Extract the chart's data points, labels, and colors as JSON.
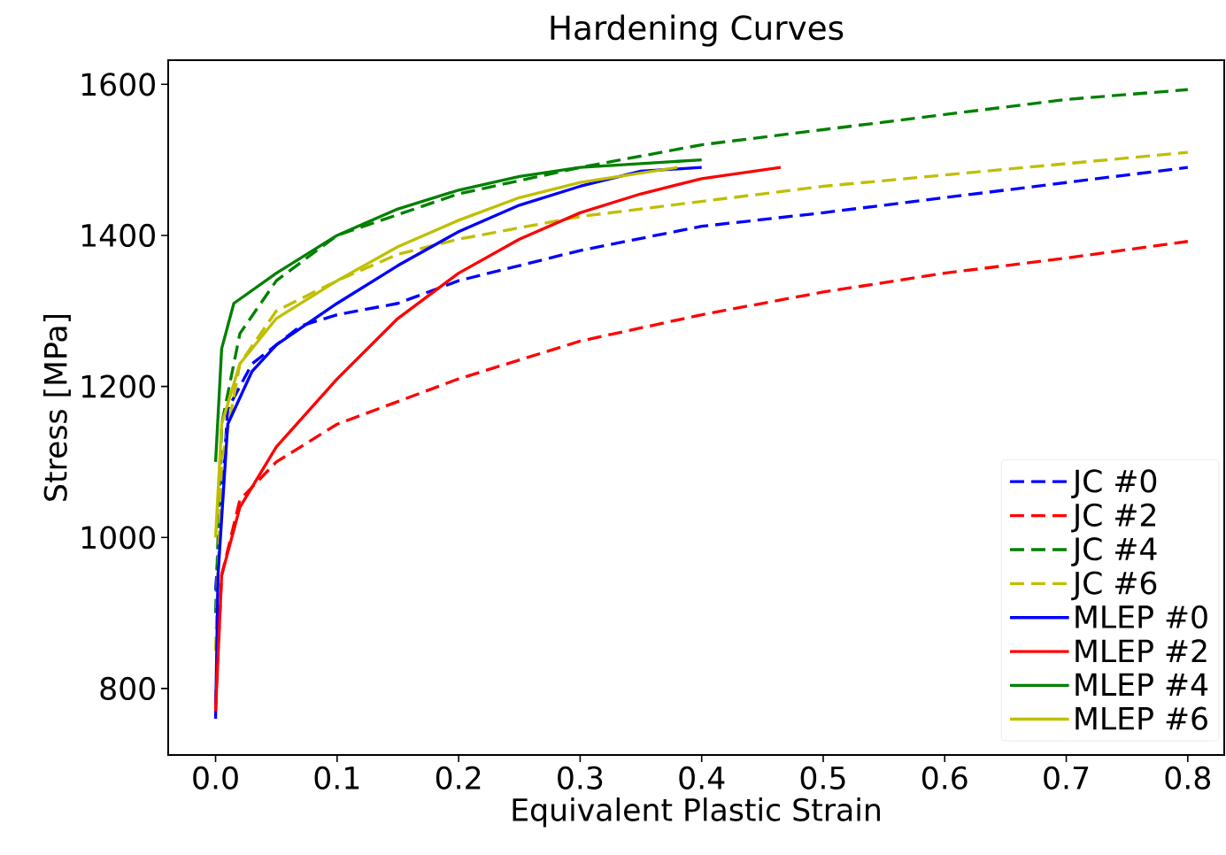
{
  "chart_data": {
    "type": "line",
    "title": "Hardening Curves",
    "xlabel": "Equivalent Plastic Strain",
    "ylabel": "Stress [MPa]",
    "xlim": [
      -0.039,
      0.83
    ],
    "ylim": [
      712,
      1632
    ],
    "xticks": [
      {
        "value": 0,
        "label": "0.0"
      },
      0.1,
      0.2,
      0.3,
      0.4,
      0.5,
      0.6,
      0.7,
      0.8
    ],
    "yticks": [
      800,
      1000,
      1200,
      1400,
      1600
    ],
    "grid": false,
    "legend": "bottom right",
    "marker": "none",
    "series": [
      {
        "name": "JC #0",
        "color": "#0000ff",
        "line_style": "dashed",
        "x": [
          0,
          0.003,
          0.01,
          0.03,
          0.07,
          0.1,
          0.15,
          0.2,
          0.25,
          0.3,
          0.4,
          0.5,
          0.6,
          0.7,
          0.8
        ],
        "values": [
          930,
          1000,
          1170,
          1230,
          1280,
          1295,
          1310,
          1340,
          1360,
          1380,
          1412,
          1430,
          1450,
          1470,
          1490
        ]
      },
      {
        "name": "JC #2",
        "color": "#ff0000",
        "line_style": "dashed",
        "x": [
          0,
          0.005,
          0.02,
          0.05,
          0.1,
          0.2,
          0.3,
          0.4,
          0.5,
          0.6,
          0.7,
          0.8
        ],
        "values": [
          780,
          950,
          1050,
          1100,
          1150,
          1210,
          1260,
          1295,
          1325,
          1350,
          1370,
          1392
        ]
      },
      {
        "name": "JC #4",
        "color": "#008000",
        "line_style": "dashed",
        "x": [
          0,
          0.005,
          0.02,
          0.05,
          0.1,
          0.2,
          0.3,
          0.4,
          0.5,
          0.6,
          0.7,
          0.8
        ],
        "values": [
          900,
          1150,
          1270,
          1340,
          1400,
          1455,
          1490,
          1520,
          1540,
          1560,
          1580,
          1593
        ]
      },
      {
        "name": "JC #6",
        "color": "#bfbf00",
        "line_style": "dashed",
        "x": [
          0,
          0.005,
          0.02,
          0.05,
          0.1,
          0.15,
          0.2,
          0.3,
          0.4,
          0.5,
          0.6,
          0.7,
          0.8
        ],
        "values": [
          850,
          1100,
          1230,
          1300,
          1340,
          1375,
          1395,
          1425,
          1445,
          1465,
          1480,
          1495,
          1510
        ]
      },
      {
        "name": "MLEP #0",
        "color": "#0000ff",
        "line_style": "solid",
        "x": [
          0,
          0.002,
          0.01,
          0.03,
          0.05,
          0.1,
          0.15,
          0.2,
          0.25,
          0.3,
          0.35,
          0.4
        ],
        "values": [
          760,
          950,
          1150,
          1220,
          1255,
          1310,
          1360,
          1405,
          1440,
          1465,
          1485,
          1490
        ]
      },
      {
        "name": "MLEP #2",
        "color": "#ff0000",
        "line_style": "solid",
        "x": [
          0,
          0.005,
          0.02,
          0.05,
          0.1,
          0.15,
          0.2,
          0.25,
          0.3,
          0.35,
          0.4,
          0.465
        ],
        "values": [
          770,
          950,
          1040,
          1120,
          1210,
          1290,
          1350,
          1395,
          1430,
          1455,
          1475,
          1490
        ]
      },
      {
        "name": "MLEP #4",
        "color": "#008000",
        "line_style": "solid",
        "x": [
          0,
          0.005,
          0.015,
          0.05,
          0.1,
          0.15,
          0.2,
          0.25,
          0.3,
          0.4
        ],
        "values": [
          1100,
          1250,
          1310,
          1350,
          1400,
          1435,
          1460,
          1478,
          1490,
          1500
        ]
      },
      {
        "name": "MLEP #6",
        "color": "#bfbf00",
        "line_style": "solid",
        "x": [
          0,
          0.005,
          0.02,
          0.05,
          0.1,
          0.15,
          0.2,
          0.25,
          0.3,
          0.38
        ],
        "values": [
          1000,
          1150,
          1230,
          1290,
          1340,
          1385,
          1420,
          1450,
          1470,
          1490
        ]
      }
    ]
  }
}
